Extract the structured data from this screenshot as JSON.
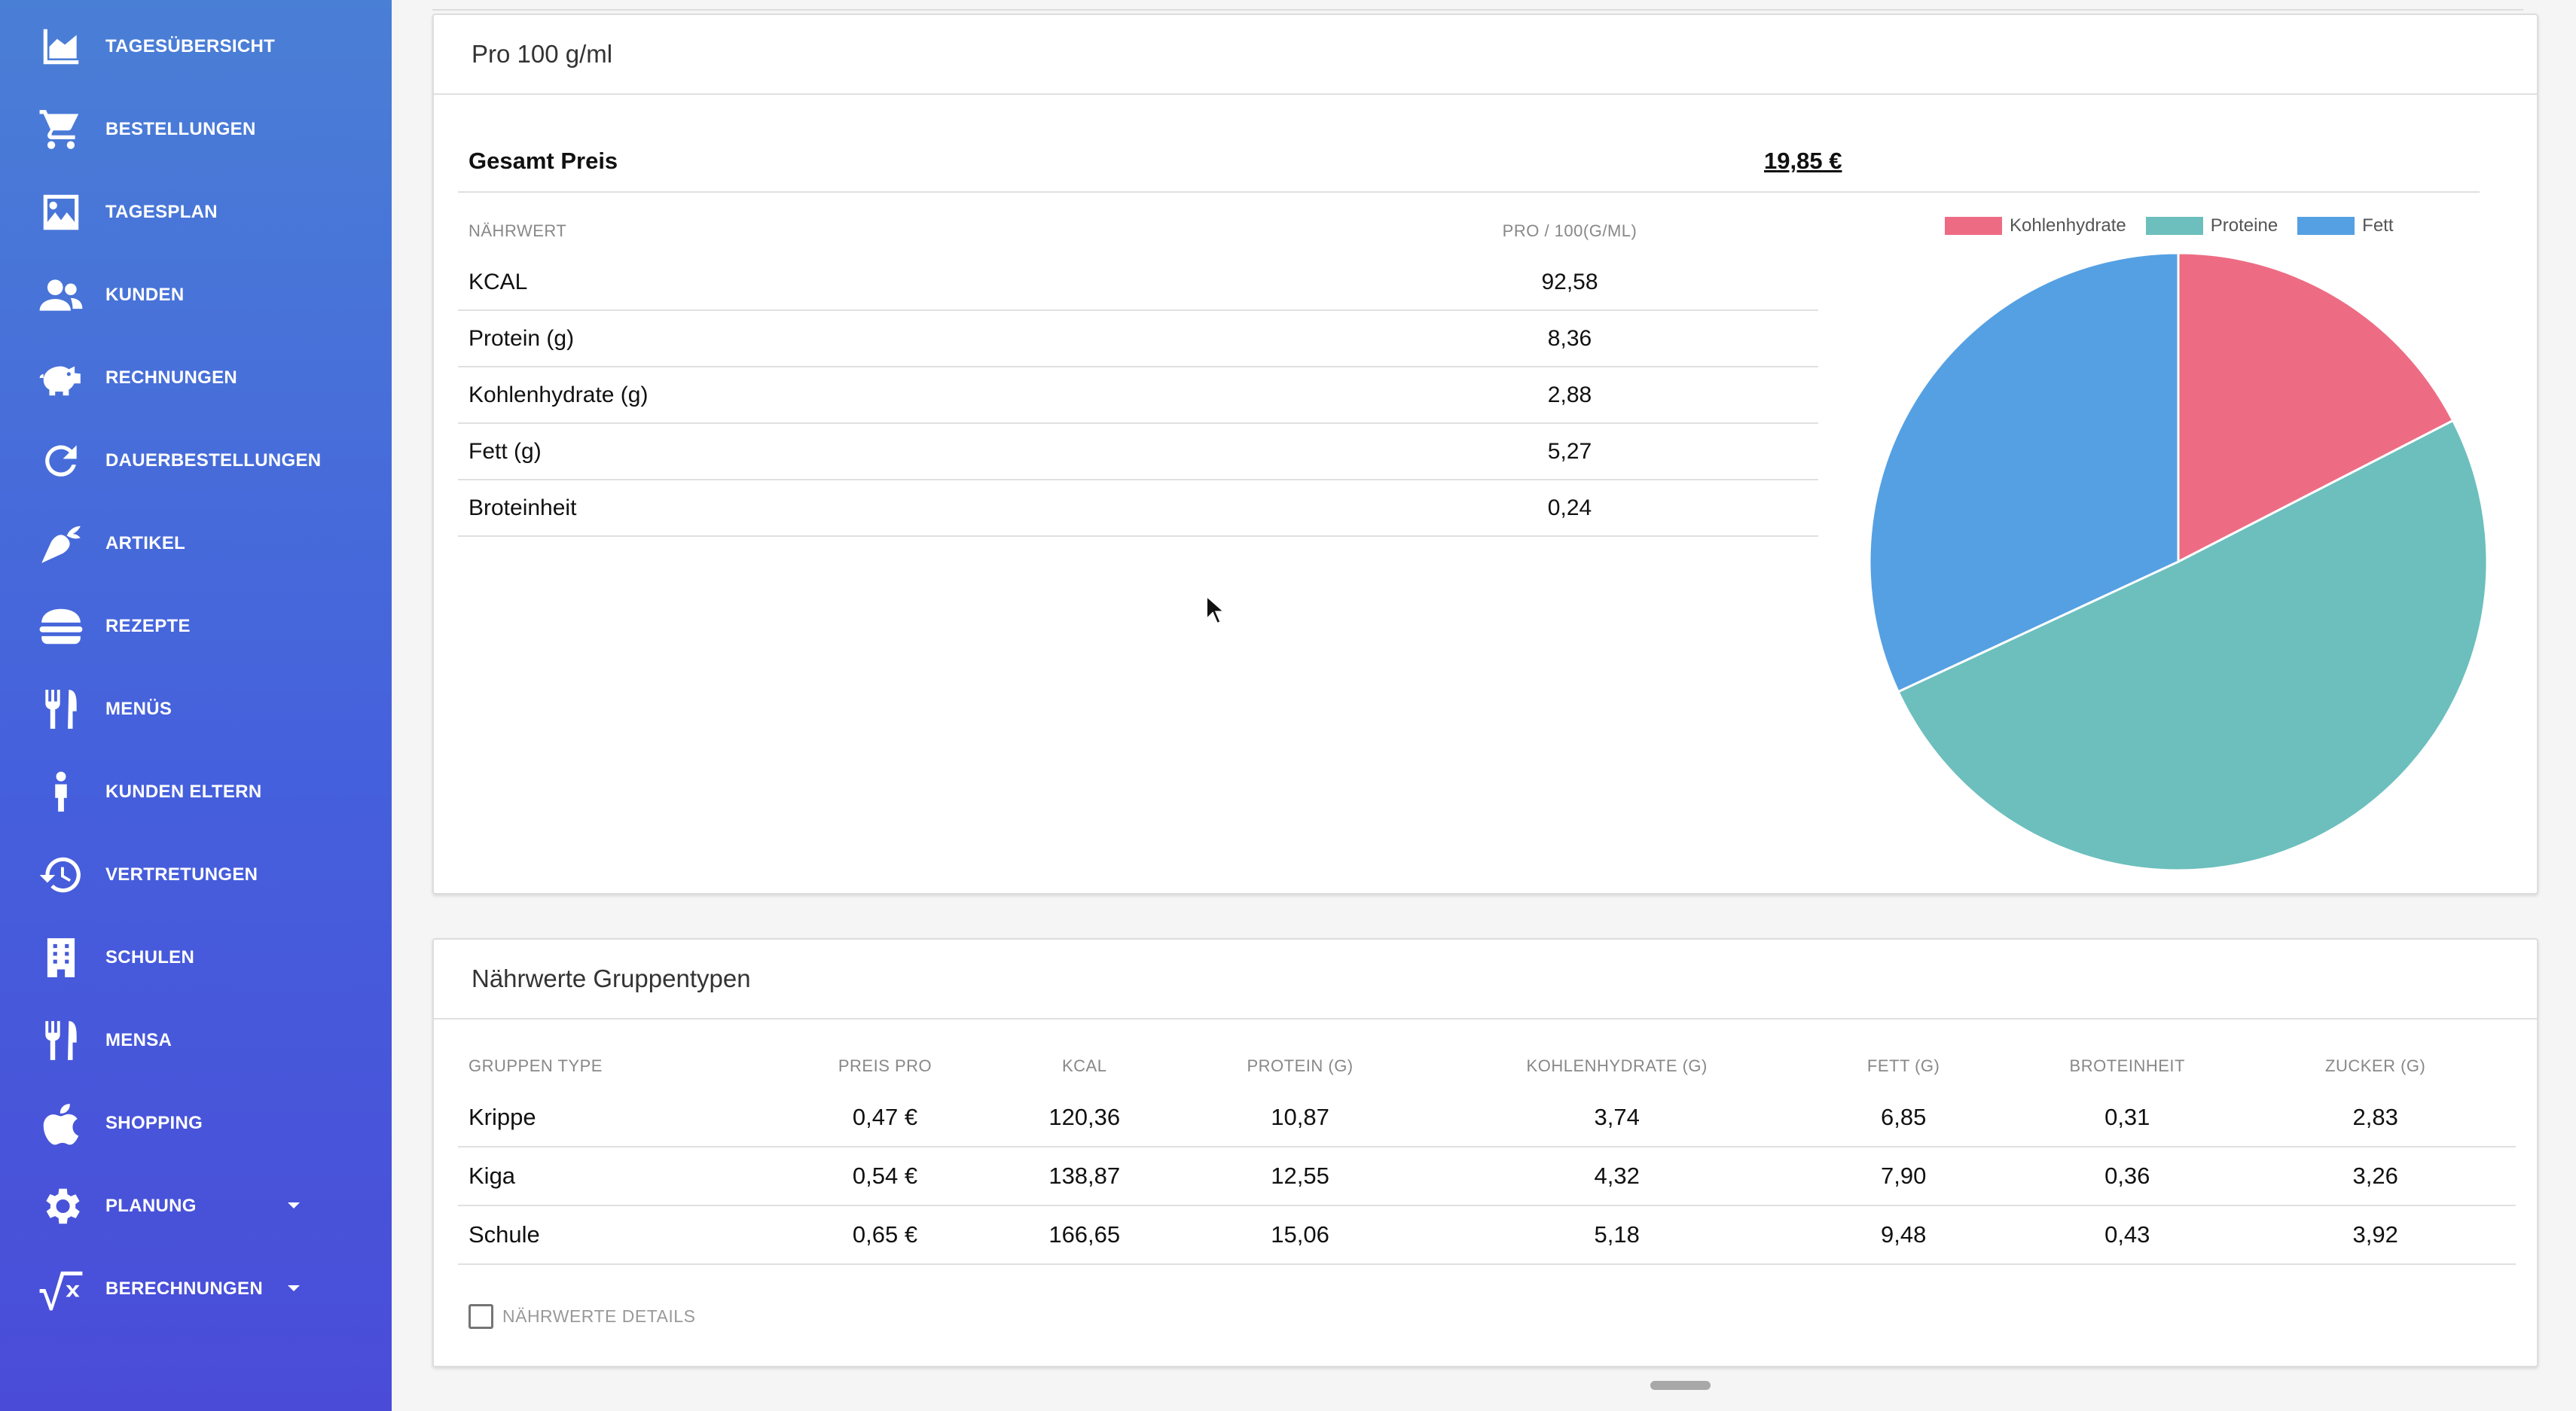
{
  "sidebar": {
    "items": [
      {
        "label": "TAGESÜBERSICHT",
        "icon": "area-chart-icon"
      },
      {
        "label": "BESTELLUNGEN",
        "icon": "shopping-cart-icon"
      },
      {
        "label": "TAGESPLAN",
        "icon": "image-icon"
      },
      {
        "label": "KUNDEN",
        "icon": "people-icon"
      },
      {
        "label": "RECHNUNGEN",
        "icon": "piggy-bank-icon"
      },
      {
        "label": "DAUERBESTELLUNGEN",
        "icon": "refresh-icon"
      },
      {
        "label": "ARTIKEL",
        "icon": "carrot-icon"
      },
      {
        "label": "REZEPTE",
        "icon": "burger-icon"
      },
      {
        "label": "MENÜS",
        "icon": "cutlery-icon"
      },
      {
        "label": "KUNDEN ELTERN",
        "icon": "child-icon"
      },
      {
        "label": "VERTRETUNGEN",
        "icon": "history-icon"
      },
      {
        "label": "SCHULEN",
        "icon": "building-icon"
      },
      {
        "label": "MENSA",
        "icon": "cutlery-icon"
      },
      {
        "label": "SHOPPING",
        "icon": "apple-icon"
      },
      {
        "label": "PLANUNG",
        "icon": "gear-icon"
      },
      {
        "label": "BERECHNUNGEN",
        "icon": "square-root-icon"
      }
    ]
  },
  "card1": {
    "title": "Pro 100 g/ml",
    "price_label": "Gesamt Preis",
    "price_value": "19,85 €",
    "table": {
      "headers": [
        "NÄHRWERT",
        "PRO / 100(G/ML)"
      ],
      "rows": [
        {
          "name": "KCAL",
          "value": "92,58"
        },
        {
          "name": "Protein (g)",
          "value": "8,36"
        },
        {
          "name": "Kohlenhydrate (g)",
          "value": "2,88"
        },
        {
          "name": "Fett (g)",
          "value": "5,27"
        },
        {
          "name": "Broteinheit",
          "value": "0,24"
        }
      ]
    }
  },
  "chart_data": {
    "type": "pie",
    "categories": [
      "Kohlenhydrate",
      "Proteine",
      "Fett"
    ],
    "values": [
      2.88,
      8.36,
      5.27
    ],
    "colors": [
      "#ed6c84",
      "#6cbfbd",
      "#55a0e3"
    ],
    "legend": "top"
  },
  "card2": {
    "title": "Nährwerte Gruppentypen",
    "headers": [
      "GRUPPEN TYPE",
      "PREIS PRO",
      "KCAL",
      "PROTEIN (G)",
      "KOHLENHYDRATE (G)",
      "FETT (G)",
      "BROTEINHEIT",
      "ZUCKER (G)"
    ],
    "rows": [
      [
        "Krippe",
        "0,47 €",
        "120,36",
        "10,87",
        "3,74",
        "6,85",
        "0,31",
        "2,83"
      ],
      [
        "Kiga",
        "0,54 €",
        "138,87",
        "12,55",
        "4,32",
        "7,90",
        "0,36",
        "3,26"
      ],
      [
        "Schule",
        "0,65 €",
        "166,65",
        "15,06",
        "5,18",
        "9,48",
        "0,43",
        "3,92"
      ]
    ],
    "details_label": "NÄHRWERTE DETAILS"
  }
}
